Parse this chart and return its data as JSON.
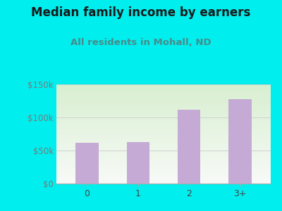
{
  "categories": [
    "0",
    "1",
    "2",
    "3+"
  ],
  "values": [
    62000,
    63000,
    112000,
    128000
  ],
  "bar_color": "#c4aad4",
  "title": "Median family income by earners",
  "subtitle": "All residents in Mohall, ND",
  "subtitle_color": "#4a8a8a",
  "title_color": "#1a1a1a",
  "outer_bg": "#00eeee",
  "plot_bg_topleft": "#d8efd0",
  "plot_bg_bottomright": "#f8faf8",
  "tick_label_color": "#7a7a7a",
  "xtick_label_color": "#444444",
  "ylim": [
    0,
    150000
  ],
  "yticks": [
    0,
    50000,
    100000,
    150000
  ],
  "ytick_labels": [
    "$0",
    "$50k",
    "$100k",
    "$150k"
  ],
  "title_fontsize": 12,
  "subtitle_fontsize": 9.5,
  "bar_width": 0.45
}
